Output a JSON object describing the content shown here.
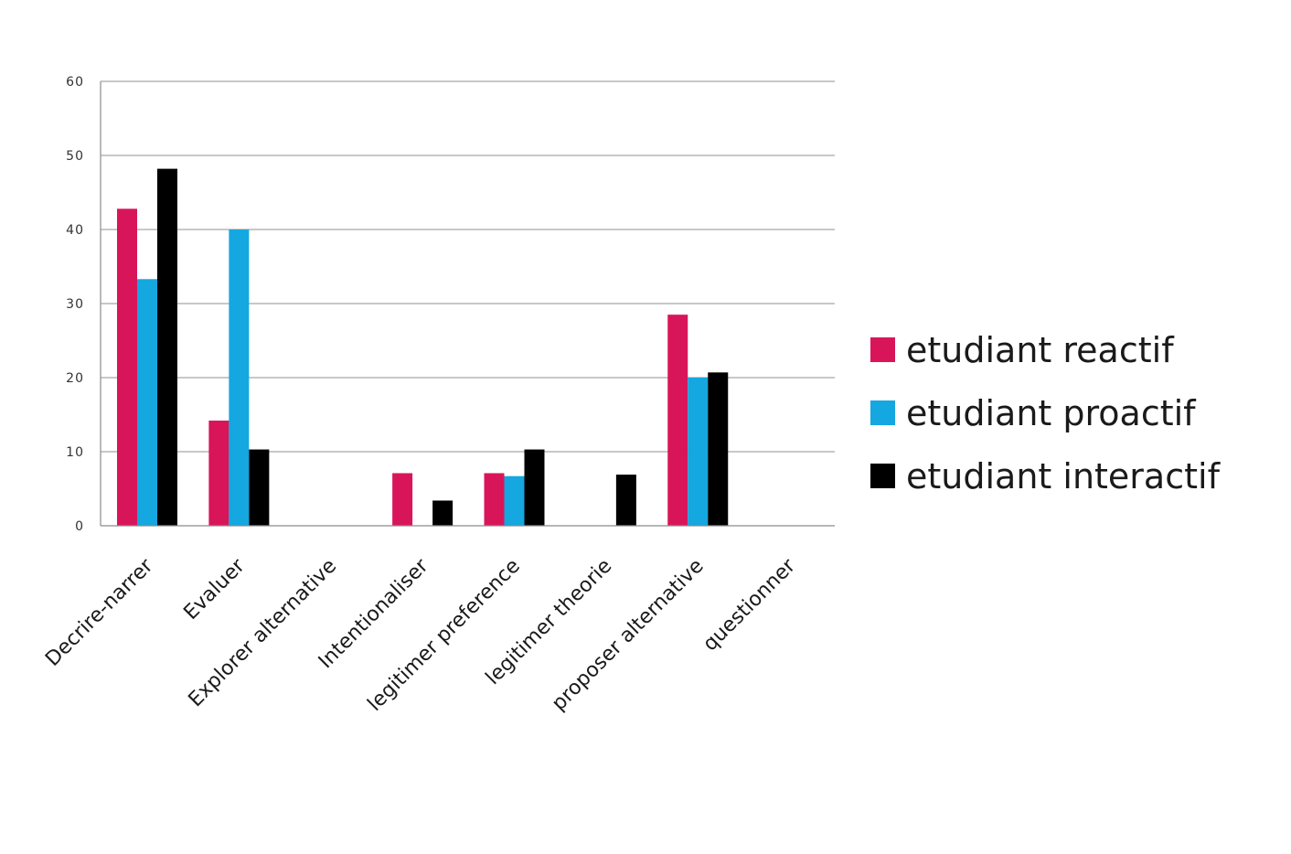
{
  "chart_data": {
    "type": "bar",
    "categories": [
      "Decrire-narrer",
      "Evaluer",
      "Explorer alternative",
      "Intentionaliser",
      "legitimer preference",
      "legitimer theorie",
      "proposer alternative",
      "questionner"
    ],
    "series": [
      {
        "name": "etudiant reactif",
        "color": "#d9155a",
        "values": [
          42.8,
          14.2,
          0,
          7.1,
          7.1,
          0,
          28.5,
          0
        ]
      },
      {
        "name": "etudiant proactif",
        "color": "#14a7e0",
        "values": [
          33.3,
          40,
          0,
          0,
          6.7,
          0,
          20,
          0
        ]
      },
      {
        "name": "etudiant interactif",
        "color": "#000000",
        "values": [
          48.2,
          10.3,
          0,
          3.4,
          10.3,
          6.9,
          20.7,
          0
        ]
      }
    ],
    "ylim": [
      0,
      60
    ],
    "yticks": [
      "0",
      "10",
      "20",
      "30",
      "40",
      "50",
      "60"
    ],
    "grid": true,
    "legend_position": "right",
    "gridline_color": "#a6a6a6"
  }
}
